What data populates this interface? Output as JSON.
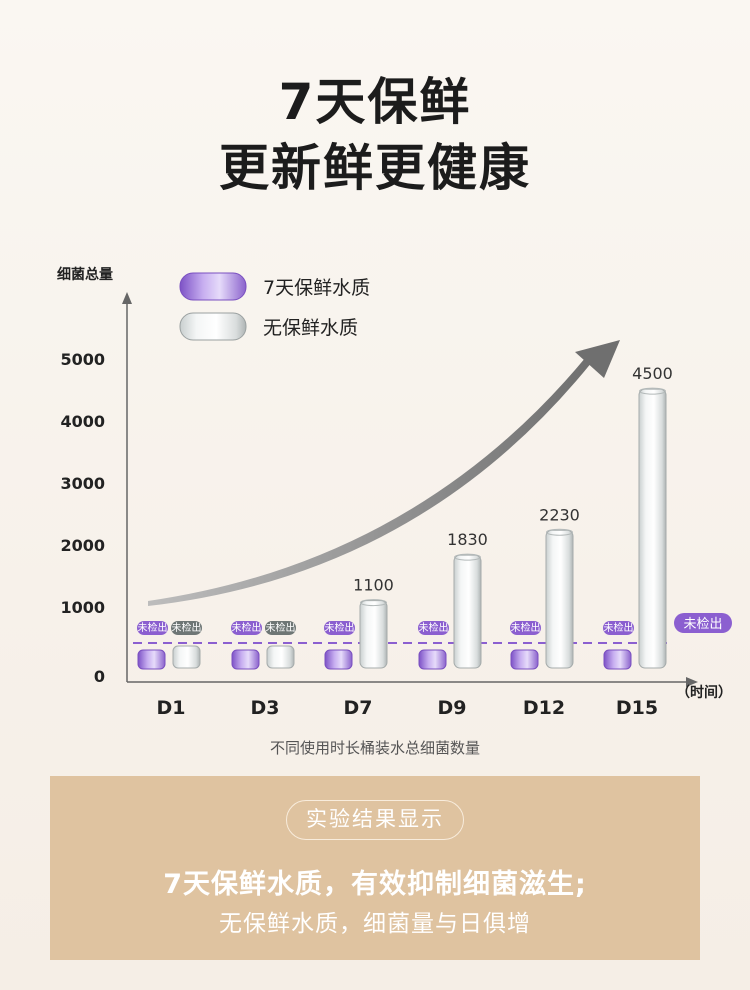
{
  "headline": {
    "line1": "7天保鲜",
    "line2": "更新鲜更健康"
  },
  "caption": "不同使用时长桶装水总细菌数量",
  "result_panel": {
    "pill": "实验结果显示",
    "line1": "7天保鲜水质，有效抑制细菌滋生;",
    "line2": "无保鲜水质，细菌量与日俱增"
  },
  "colors": {
    "purple": "#8b5fd0",
    "gray_badge": "#6e7675",
    "panel": "#dfc3a0",
    "arrow": "#7d7d7d"
  },
  "chart_data": {
    "type": "bar",
    "ylabel": "细菌总量",
    "xlabel": "（时间）",
    "yticks": [
      "0",
      "1000",
      "2000",
      "3000",
      "4000",
      "5000"
    ],
    "ylim": [
      0,
      5000
    ],
    "categories": [
      "D1",
      "D3",
      "D7",
      "D9",
      "D12",
      "D15"
    ],
    "series": [
      {
        "name": "7天保鲜水质",
        "values": [
          0,
          0,
          0,
          0,
          0,
          0
        ],
        "labels": [
          "未检出",
          "未检出",
          "未检出",
          "未检出",
          "未检出",
          "未检出"
        ]
      },
      {
        "name": "无保鲜水质",
        "values": [
          0,
          0,
          1100,
          1830,
          2230,
          4500
        ],
        "labels": [
          "未检出",
          "未检出",
          "1100",
          "1830",
          "2230",
          "4500"
        ]
      }
    ],
    "detection_line_label": "未检出",
    "legend": "top-left",
    "grid": false
  }
}
